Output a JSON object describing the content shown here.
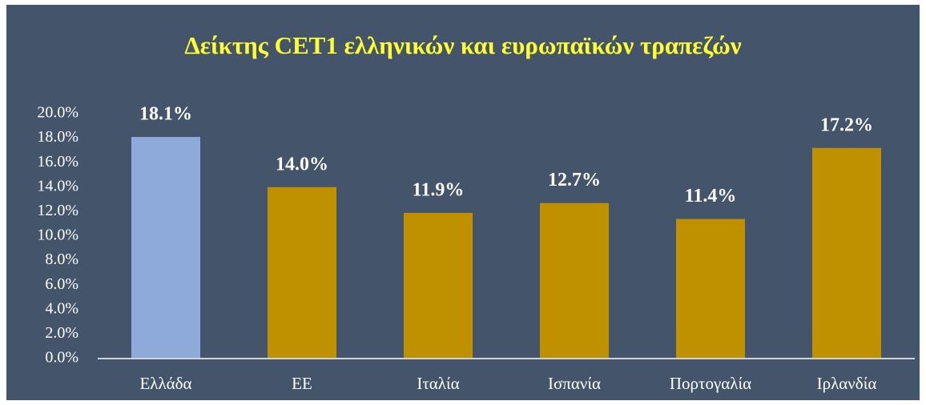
{
  "chart_data": {
    "type": "bar",
    "title": "Δείκτης CET1 ελληνικών και ευρωπαϊκών τραπεζών",
    "categories": [
      "Ελλάδα",
      "ΕΕ",
      "Ιταλία",
      "Ισπανία",
      "Πορτογαλία",
      "Ιρλανδία"
    ],
    "values": [
      18.1,
      14.0,
      11.9,
      12.7,
      11.4,
      17.2
    ],
    "value_labels": [
      "18.1%",
      "14.0%",
      "11.9%",
      "12.7%",
      "11.4%",
      "17.2%"
    ],
    "colors": [
      "#8eaadb",
      "#bf9000",
      "#bf9000",
      "#bf9000",
      "#bf9000",
      "#bf9000"
    ],
    "ylim": [
      0,
      20
    ],
    "yticks": [
      {
        "value": 0,
        "label": "0.0%"
      },
      {
        "value": 2,
        "label": "2.0%"
      },
      {
        "value": 4,
        "label": "4.0%"
      },
      {
        "value": 6,
        "label": "6.0%"
      },
      {
        "value": 8,
        "label": "8.0%"
      },
      {
        "value": 10,
        "label": "10.0%"
      },
      {
        "value": 12,
        "label": "12.0%"
      },
      {
        "value": 14,
        "label": "14.0%"
      },
      {
        "value": 16,
        "label": "16.0%"
      },
      {
        "value": 18,
        "label": "18.0%"
      },
      {
        "value": 20,
        "label": "20.0%"
      }
    ],
    "grid": false
  }
}
